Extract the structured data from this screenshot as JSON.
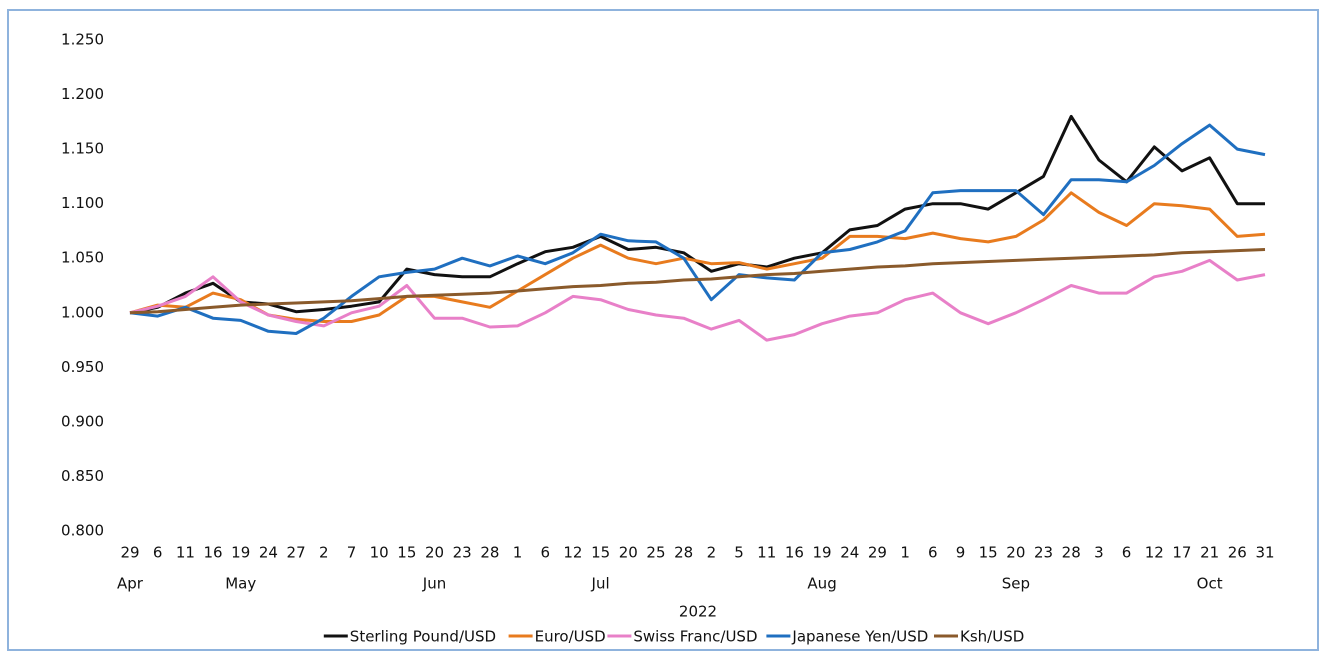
{
  "chart_data": {
    "type": "line",
    "x_label": "2022",
    "categories": [
      "29",
      "6",
      "11",
      "16",
      "19",
      "24",
      "27",
      "2",
      "7",
      "10",
      "15",
      "20",
      "23",
      "28",
      "1",
      "6",
      "12",
      "15",
      "20",
      "25",
      "28",
      "2",
      "5",
      "11",
      "16",
      "19",
      "24",
      "29",
      "1",
      "6",
      "9",
      "15",
      "20",
      "23",
      "28",
      "3",
      "6",
      "12",
      "17",
      "21",
      "26",
      "31"
    ],
    "category_groups": [
      "Apr",
      null,
      null,
      null,
      "May",
      null,
      null,
      null,
      null,
      null,
      null,
      "Jun",
      null,
      null,
      null,
      null,
      null,
      "Jul",
      null,
      null,
      null,
      null,
      null,
      null,
      null,
      "Aug",
      null,
      null,
      null,
      null,
      null,
      null,
      "Sep",
      null,
      null,
      null,
      null,
      null,
      null,
      "Oct",
      null,
      null
    ],
    "ylim": [
      0.8,
      1.25
    ],
    "yticks": [
      {
        "value": 0.8,
        "label": "0.800"
      },
      {
        "value": 0.85,
        "label": "0.850"
      },
      {
        "value": 0.9,
        "label": "0.900"
      },
      {
        "value": 0.95,
        "label": "0.950"
      },
      {
        "value": 1.0,
        "label": "1.000"
      },
      {
        "value": 1.05,
        "label": "1.050"
      },
      {
        "value": 1.1,
        "label": "1.100"
      },
      {
        "value": 1.15,
        "label": "1.150"
      },
      {
        "value": 1.2,
        "label": "1.200"
      },
      {
        "value": 1.25,
        "label": "1.250"
      }
    ],
    "grid": false,
    "legend": "bottom",
    "series": [
      {
        "name": "Sterling Pound/USD",
        "color": "#111111",
        "values": [
          1.0,
          1.005,
          1.018,
          1.027,
          1.01,
          1.008,
          1.001,
          1.003,
          1.006,
          1.01,
          1.04,
          1.035,
          1.033,
          1.033,
          1.045,
          1.056,
          1.06,
          1.07,
          1.058,
          1.06,
          1.055,
          1.038,
          1.045,
          1.042,
          1.05,
          1.055,
          1.076,
          1.08,
          1.095,
          1.1,
          1.1,
          1.095,
          1.11,
          1.125,
          1.18,
          1.14,
          1.12,
          1.152,
          1.13,
          1.142,
          1.1,
          1.1
        ]
      },
      {
        "name": "Euro/USD",
        "color": "#e87b1e",
        "values": [
          1.0,
          1.007,
          1.005,
          1.018,
          1.012,
          0.998,
          0.994,
          0.992,
          0.992,
          0.998,
          1.015,
          1.015,
          1.01,
          1.005,
          1.02,
          1.035,
          1.05,
          1.062,
          1.05,
          1.045,
          1.05,
          1.045,
          1.046,
          1.04,
          1.045,
          1.05,
          1.07,
          1.07,
          1.068,
          1.073,
          1.068,
          1.065,
          1.07,
          1.085,
          1.11,
          1.092,
          1.08,
          1.1,
          1.098,
          1.095,
          1.07,
          1.072
        ]
      },
      {
        "name": "Swiss Franc/USD",
        "color": "#e880c8",
        "values": [
          1.0,
          1.006,
          1.015,
          1.033,
          1.01,
          0.998,
          0.992,
          0.988,
          1.0,
          1.006,
          1.025,
          0.995,
          0.995,
          0.987,
          0.988,
          1.0,
          1.015,
          1.012,
          1.003,
          0.998,
          0.995,
          0.985,
          0.993,
          0.975,
          0.98,
          0.99,
          0.997,
          1.0,
          1.012,
          1.018,
          1.0,
          0.99,
          1.0,
          1.012,
          1.025,
          1.018,
          1.018,
          1.033,
          1.038,
          1.048,
          1.03,
          1.035
        ]
      },
      {
        "name": "Japanese Yen/USD",
        "color": "#1f6fc0",
        "values": [
          1.0,
          0.997,
          1.005,
          0.995,
          0.993,
          0.983,
          0.981,
          0.995,
          1.015,
          1.033,
          1.037,
          1.04,
          1.05,
          1.043,
          1.052,
          1.045,
          1.055,
          1.072,
          1.066,
          1.065,
          1.05,
          1.012,
          1.035,
          1.032,
          1.03,
          1.055,
          1.058,
          1.065,
          1.075,
          1.11,
          1.112,
          1.112,
          1.112,
          1.09,
          1.122,
          1.122,
          1.12,
          1.135,
          1.155,
          1.172,
          1.15,
          1.145
        ]
      },
      {
        "name": "Ksh/USD",
        "color": "#8a5a2b",
        "values": [
          1.0,
          1.001,
          1.003,
          1.005,
          1.007,
          1.008,
          1.009,
          1.01,
          1.011,
          1.013,
          1.015,
          1.016,
          1.017,
          1.018,
          1.02,
          1.022,
          1.024,
          1.025,
          1.027,
          1.028,
          1.03,
          1.031,
          1.033,
          1.035,
          1.036,
          1.038,
          1.04,
          1.042,
          1.043,
          1.045,
          1.046,
          1.047,
          1.048,
          1.049,
          1.05,
          1.051,
          1.052,
          1.053,
          1.055,
          1.056,
          1.057,
          1.058
        ]
      }
    ]
  }
}
